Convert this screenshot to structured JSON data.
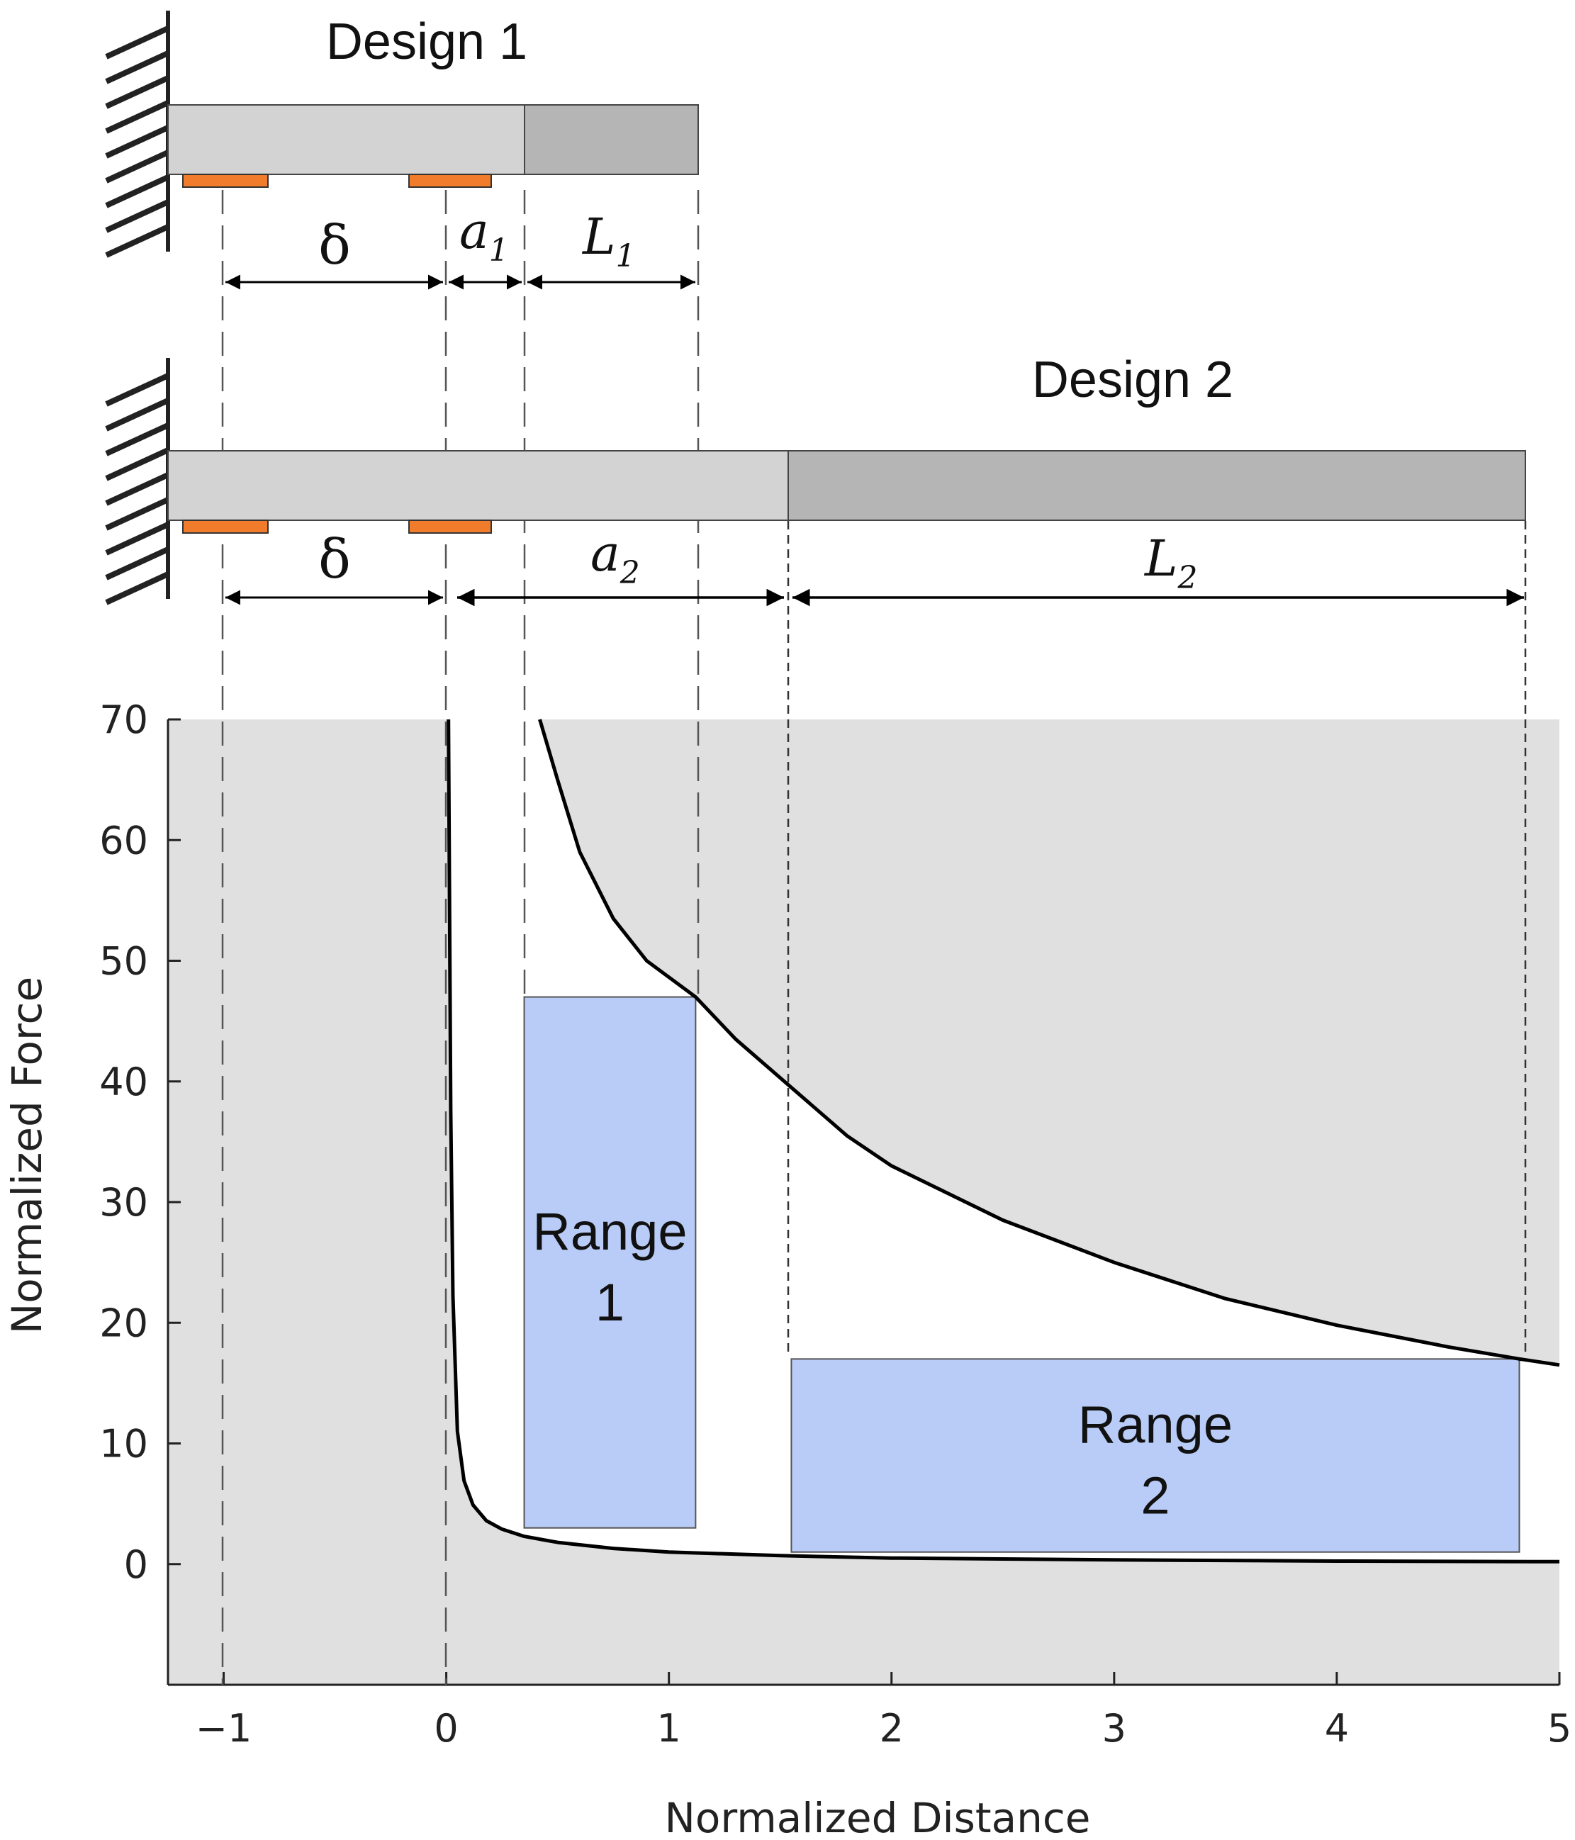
{
  "diagram": {
    "design1_title": "Design 1",
    "design2_title": "Design 2",
    "delta_label": "δ",
    "a1_main": "a",
    "a1_sub": "1",
    "L1_main": "L",
    "L1_sub": "1",
    "a2_main": "a",
    "a2_sub": "2",
    "L2_main": "L",
    "L2_sub": "2"
  },
  "chart_data": {
    "type": "line",
    "xlabel": "Normalized Distance",
    "ylabel": "Normalized Force",
    "xlim": [
      -1.25,
      5
    ],
    "ylim": [
      -10,
      70
    ],
    "x_ticks": [
      -1,
      0,
      1,
      2,
      3,
      4,
      5
    ],
    "x_tick_labels": [
      "−1",
      "0",
      "1",
      "2",
      "3",
      "4",
      "5"
    ],
    "y_ticks": [
      0,
      10,
      20,
      30,
      40,
      50,
      60,
      70
    ],
    "y_tick_labels": [
      "0",
      "10",
      "20",
      "30",
      "40",
      "50",
      "60",
      "70"
    ],
    "grid": false,
    "colors": {
      "shaded_region": "#e0e0e0",
      "range_fill": "#b9ccf7",
      "range_stroke": "#555555",
      "curve": "#000000",
      "beam_light": "#d3d3d3",
      "beam_dark": "#b5b5b5",
      "electrode": "#f07c2c"
    },
    "series": [
      {
        "x": [
          0.01,
          0.02,
          0.03,
          0.05,
          0.08,
          0.12,
          0.18,
          0.25,
          0.35,
          0.5,
          0.75,
          1.0,
          1.5,
          2.0,
          3.0,
          4.0,
          5.0
        ],
        "values": [
          70.0,
          37.5,
          22.2,
          11.0,
          6.9,
          4.9,
          3.6,
          2.9,
          2.3,
          1.8,
          1.3,
          1.0,
          0.7,
          0.5,
          0.35,
          0.25,
          0.2
        ]
      },
      {
        "x": [
          0.42,
          0.5,
          0.6,
          0.75,
          0.9,
          1.12,
          1.3,
          1.55,
          1.8,
          2.0,
          2.5,
          3.0,
          3.5,
          4.0,
          4.5,
          4.82,
          5.0
        ],
        "values": [
          70.0,
          65.0,
          59.0,
          53.5,
          50.0,
          47.0,
          43.5,
          39.5,
          35.5,
          33.0,
          28.5,
          25.0,
          22.0,
          19.8,
          18.0,
          17.0,
          16.5
        ]
      }
    ],
    "ranges": [
      {
        "label_line1": "Range",
        "label_line2": "1",
        "x0": 0.35,
        "x1": 1.12,
        "y0": 3,
        "y1": 47
      },
      {
        "label_line1": "Range",
        "label_line2": "2",
        "x0": 1.55,
        "x1": 4.82,
        "y0": 1,
        "y1": 17
      }
    ]
  }
}
